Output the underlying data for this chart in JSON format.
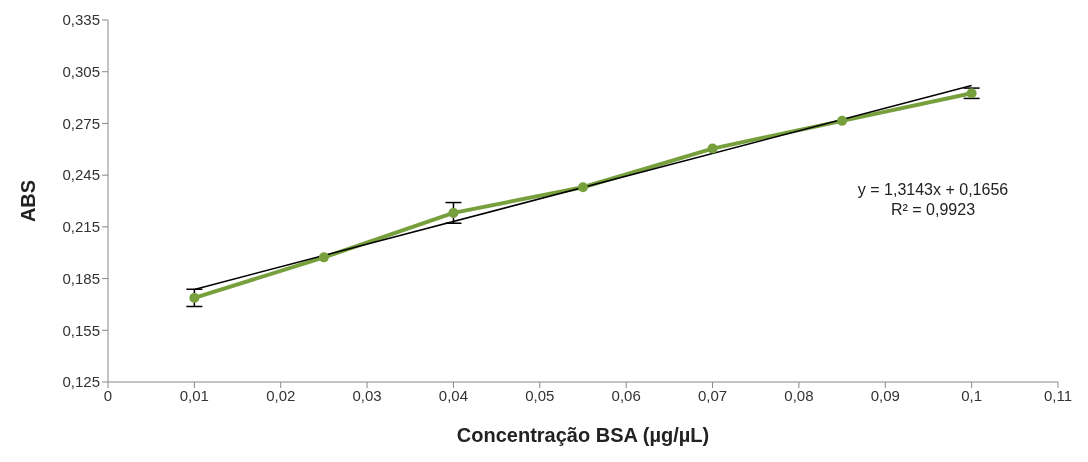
{
  "chart_data": {
    "type": "line",
    "xlabel": "Concentração BSA (µg/µL)",
    "ylabel": "ABS",
    "x": [
      0.01,
      0.025,
      0.04,
      0.055,
      0.07,
      0.085,
      0.1
    ],
    "series": [
      {
        "color": "#77a03d",
        "values": [
          0.1738,
          0.1973,
          0.2231,
          0.238,
          0.2604,
          0.2765,
          0.2925
        ],
        "errors": [
          0.005,
          null,
          0.006,
          null,
          null,
          null,
          0.003
        ],
        "marker": "circle"
      },
      {
        "type": "line",
        "color": "#000000",
        "x": [
          0.01,
          0.1
        ],
        "values": [
          0.1787,
          0.297
        ],
        "marker": "none"
      }
    ],
    "xlim": [
      0,
      0.11
    ],
    "xticks": [
      {
        "value": 0,
        "label": "0"
      },
      {
        "value": 0.01,
        "label": "0,01"
      },
      {
        "value": 0.02,
        "label": "0,02"
      },
      {
        "value": 0.03,
        "label": "0,03"
      },
      {
        "value": 0.04,
        "label": "0,04"
      },
      {
        "value": 0.05,
        "label": "0,05"
      },
      {
        "value": 0.06,
        "label": "0,06"
      },
      {
        "value": 0.07,
        "label": "0,07"
      },
      {
        "value": 0.08,
        "label": "0,08"
      },
      {
        "value": 0.09,
        "label": "0,09"
      },
      {
        "value": 0.1,
        "label": "0,1"
      },
      {
        "value": 0.11,
        "label": "0,11"
      }
    ],
    "ylim": [
      0.125,
      0.335
    ],
    "yticks": [
      {
        "value": 0.125,
        "label": "0,125"
      },
      {
        "value": 0.155,
        "label": "0,155"
      },
      {
        "value": 0.185,
        "label": "0,185"
      },
      {
        "value": 0.215,
        "label": "0,215"
      },
      {
        "value": 0.245,
        "label": "0,245"
      },
      {
        "value": 0.275,
        "label": "0,275"
      },
      {
        "value": 0.305,
        "label": "0,305"
      },
      {
        "value": 0.335,
        "label": "0,335"
      }
    ],
    "annotations": [
      "y = 1,3143x + 0,1656",
      "R² = 0,9923"
    ],
    "grid": false
  }
}
